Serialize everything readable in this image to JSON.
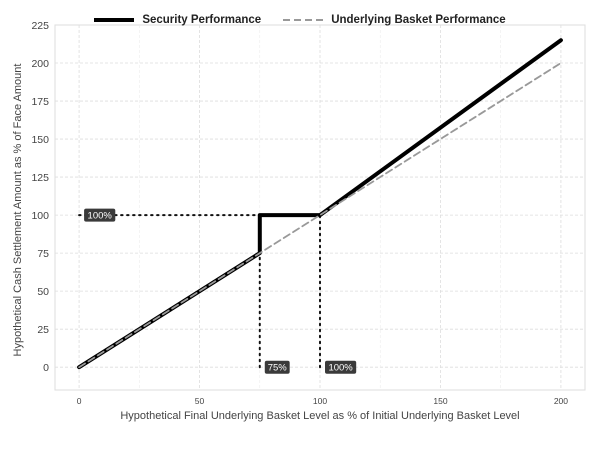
{
  "chart_data": {
    "type": "line",
    "xlabel": "Hypothetical Final Underlying Basket Level as % of Initial Underlying Basket Level",
    "ylabel": "Hypothetical Cash Settlement Amount as % of Face Amount",
    "xlim": [
      -10,
      210
    ],
    "ylim": [
      -15,
      225
    ],
    "x_ticks": [
      0,
      50,
      100,
      150,
      200
    ],
    "y_ticks": [
      0,
      25,
      50,
      75,
      100,
      125,
      150,
      175,
      200,
      225
    ],
    "grid": true,
    "legend_position": "top",
    "series": [
      {
        "name": "Security Performance",
        "color": "#000000",
        "style": "solid",
        "points": [
          [
            0,
            0
          ],
          [
            75,
            75
          ],
          [
            75,
            100
          ],
          [
            100,
            100
          ],
          [
            200,
            215
          ]
        ]
      },
      {
        "name": "Underlying Basket Performance",
        "color": "#999999",
        "style": "dashed",
        "points": [
          [
            0,
            0
          ],
          [
            200,
            200
          ]
        ]
      }
    ],
    "reference_lines": [
      {
        "from": [
          0,
          100
        ],
        "to": [
          75,
          100
        ]
      },
      {
        "from": [
          75,
          0
        ],
        "to": [
          75,
          100
        ]
      },
      {
        "from": [
          100,
          0
        ],
        "to": [
          100,
          100
        ]
      }
    ],
    "annotations": [
      {
        "x": 0,
        "y": 100,
        "text": "100%"
      },
      {
        "x": 75,
        "y": 0,
        "text": "75%"
      },
      {
        "x": 100,
        "y": 0,
        "text": "100%"
      }
    ]
  }
}
